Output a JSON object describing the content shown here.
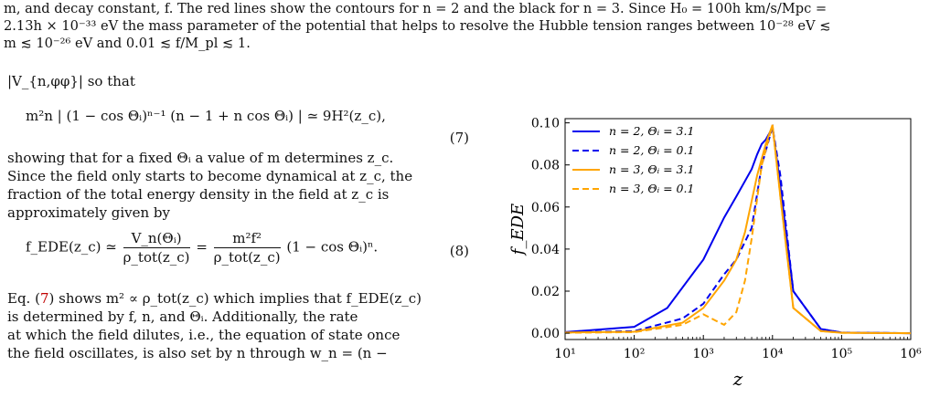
{
  "caption": {
    "line1": "m, and decay constant, f. The red lines show the contours for n = 2 and the black for n = 3. Since H₀ = 100h km/s/Mpc =",
    "line2": "2.13h × 10⁻³³ eV the mass parameter of the potential that helps to resolve the Hubble tension ranges between 10⁻²⁸ eV ≲",
    "line3": "m ≲ 10⁻²⁶ eV and 0.01 ≲ f/M_pl ≲ 1."
  },
  "body": {
    "intro": "|V_{n,φφ}| so that",
    "eq7": "m²n | (1 − cos Θᵢ)ⁿ⁻¹ (n − 1 + n cos Θᵢ) | ≃ 9H²(z_c),",
    "eq7_number": "(7)",
    "p1_l1": "showing that for a fixed Θᵢ a value of m determines z_c.",
    "p1_l2": "Since the field only starts to become dynamical at z_c, the",
    "p1_l3": "fraction of the total energy density in the field at z_c is",
    "p1_l4": "approximately given by",
    "eq8_lhs": "f_EDE(z_c) ≃",
    "eq8_frac1_num": "V_n(Θᵢ)",
    "eq8_frac1_den": "ρ_tot(z_c)",
    "eq8_eq": "=",
    "eq8_frac2_num": "m²f²",
    "eq8_frac2_den": "ρ_tot(z_c)",
    "eq8_tail": "(1 − cos Θᵢ)ⁿ.",
    "eq8_number": "(8)",
    "p2_l1_a": "Eq. (",
    "p2_l1_ref": "7",
    "p2_l1_b": ") shows m² ∝ ρ_tot(z_c) which implies that f_EDE(z_c)",
    "p2_l2": "is determined by f, n, and Θᵢ. Additionally, the rate",
    "p2_l3": "at which the field dilutes, i.e., the equation of state once",
    "p2_l4": "the field oscillates, is also set by n through w_n = (n −"
  },
  "colors": {
    "blue": "#0000ee",
    "orange": "#ffa500",
    "ref_red": "#c00000"
  },
  "chart_data": {
    "type": "line",
    "xlabel": "z",
    "ylabel": "f_EDE",
    "xscale": "log",
    "xlim": [
      10,
      1000000
    ],
    "ylim": [
      -0.003,
      0.102
    ],
    "x_ticks": [
      "10¹",
      "10²",
      "10³",
      "10⁴",
      "10⁵",
      "10⁶"
    ],
    "y_ticks": [
      "0.00",
      "0.02",
      "0.04",
      "0.06",
      "0.08",
      "0.10"
    ],
    "legend_position": "top-left",
    "series": [
      {
        "name": "n = 2, Θᵢ = 3.1",
        "color": "#0000ee",
        "style": "solid",
        "x": [
          10,
          100,
          300,
          1000,
          2000,
          3000,
          5000,
          6000,
          7000,
          8000,
          9000,
          10000,
          13000,
          20000,
          50000,
          100000,
          1000000
        ],
        "y": [
          0.0005,
          0.003,
          0.012,
          0.035,
          0.055,
          0.065,
          0.078,
          0.085,
          0.09,
          0.092,
          0.095,
          0.098,
          0.07,
          0.02,
          0.002,
          0.0003,
          0.0
        ]
      },
      {
        "name": "n = 2, Θᵢ = 0.1",
        "color": "#0000ee",
        "style": "dashed",
        "x": [
          10,
          100,
          500,
          1000,
          2000,
          3000,
          5000,
          7000,
          10000,
          13000,
          20000,
          50000,
          100000,
          1000000
        ],
        "y": [
          0.0004,
          0.001,
          0.007,
          0.014,
          0.028,
          0.035,
          0.05,
          0.08,
          0.098,
          0.075,
          0.02,
          0.002,
          0.0003,
          0.0
        ]
      },
      {
        "name": "n = 3, Θᵢ = 3.1",
        "color": "#ffa500",
        "style": "solid",
        "x": [
          10,
          100,
          500,
          1000,
          2000,
          3000,
          4000,
          6000,
          8000,
          10000,
          13000,
          20000,
          50000,
          100000,
          1000000
        ],
        "y": [
          0.0003,
          0.0007,
          0.005,
          0.012,
          0.025,
          0.035,
          0.048,
          0.075,
          0.09,
          0.099,
          0.065,
          0.012,
          0.001,
          0.0002,
          0.0
        ]
      },
      {
        "name": "n = 3, Θᵢ = 0.1",
        "color": "#ffa500",
        "style": "dashed",
        "x": [
          10,
          100,
          500,
          1000,
          1500,
          2000,
          3000,
          4000,
          5000,
          7000,
          10000,
          13000,
          20000,
          50000,
          100000,
          1000000
        ],
        "y": [
          0.0002,
          0.0005,
          0.004,
          0.009,
          0.006,
          0.004,
          0.01,
          0.025,
          0.045,
          0.08,
          0.099,
          0.065,
          0.012,
          0.001,
          0.0002,
          0.0
        ]
      }
    ]
  }
}
